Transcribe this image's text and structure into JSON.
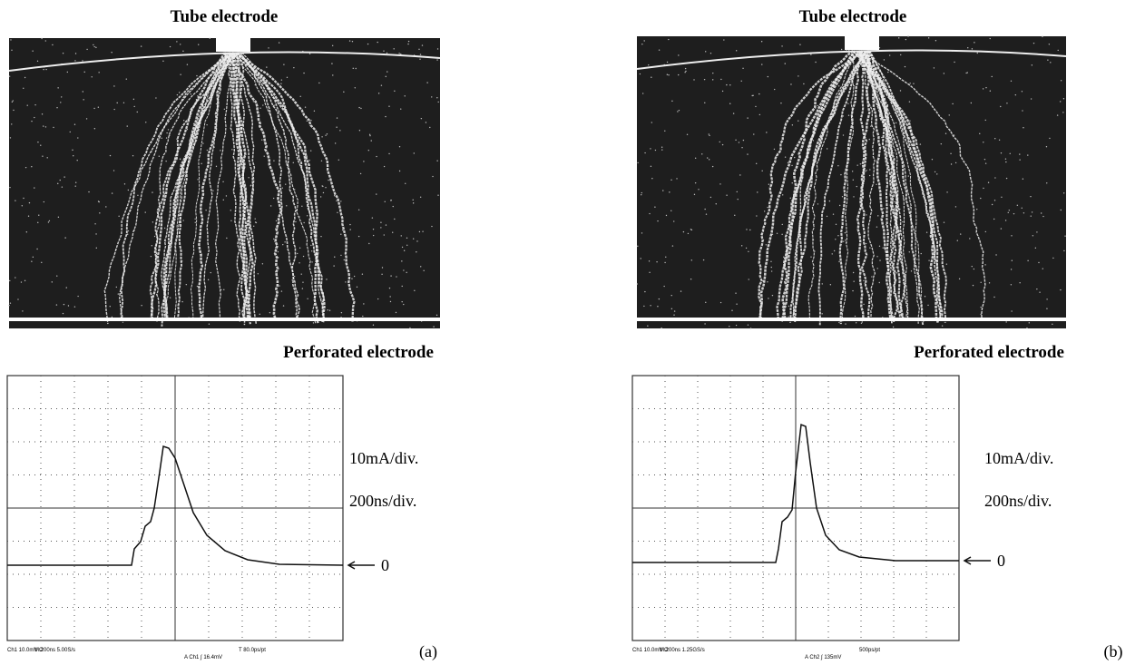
{
  "panels": [
    {
      "top_label": "Tube electrode",
      "bottom_label": "Perforated electrode",
      "current_scale": "10mA/div.",
      "time_scale": "200ns/div.",
      "zero_label": "0",
      "scope_footer": [
        "Ch1  10.0mV Ω",
        "M 200ns 5.00S/s",
        "T 80.0ps/pt",
        "A Ch1 ∫ 16.4mV"
      ],
      "panel_label": "(a)"
    },
    {
      "top_label": "Tube electrode",
      "bottom_label": "Perforated electrode",
      "current_scale": "10mA/div.",
      "time_scale": "200ns/div.",
      "zero_label": "0",
      "scope_footer": [
        "Ch1  10.0mV Ω",
        "M 200ns 1.25GS/s",
        "500ps/pt",
        "A Ch2 ∫ 135mV"
      ],
      "panel_label": "(b)"
    }
  ]
}
